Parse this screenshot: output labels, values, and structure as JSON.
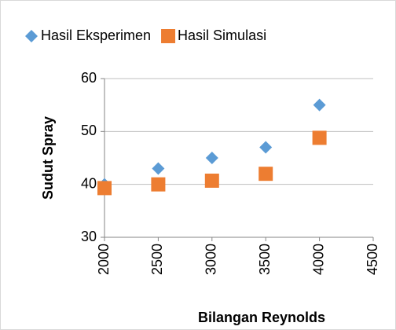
{
  "chart_data": {
    "type": "scatter",
    "x_label": "Bilangan Reynolds",
    "y_label": "Sudut Spray",
    "series": [
      {
        "name": "Hasil Eksperimen",
        "color": "#5b9bd5",
        "marker": "diamond",
        "x": [
          2000,
          2500,
          3000,
          3500,
          4000
        ],
        "values": [
          40,
          43,
          45,
          47,
          55
        ]
      },
      {
        "name": "Hasil Simulasi",
        "color": "#ed7d31",
        "marker": "square",
        "x": [
          2000,
          2500,
          3000,
          3500,
          4000
        ],
        "values": [
          39.3,
          40,
          40.7,
          42,
          48.8
        ]
      }
    ],
    "xlim": [
      2000,
      4500
    ],
    "xticks": [
      2000,
      2500,
      3000,
      3500,
      4000,
      4500
    ],
    "ylim": [
      30,
      60
    ],
    "yticks": [
      30,
      40,
      50,
      60
    ],
    "grid": true,
    "legend": "top"
  }
}
